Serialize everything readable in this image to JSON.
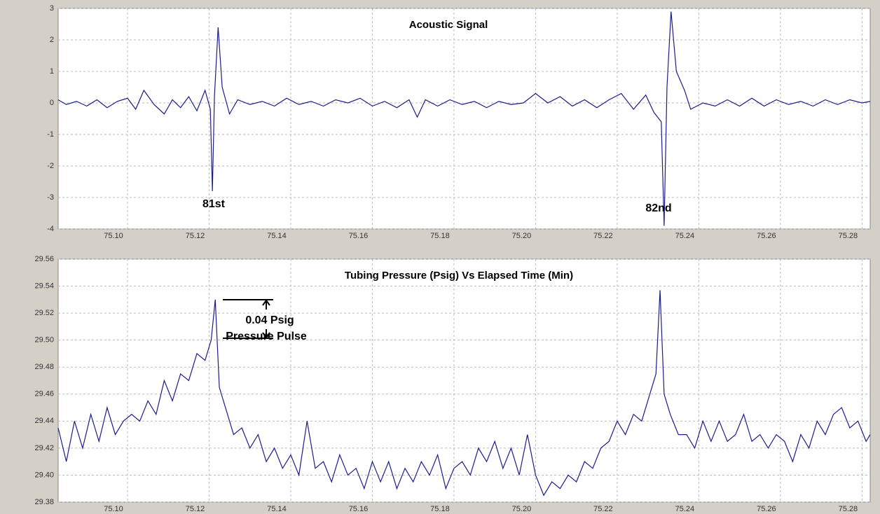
{
  "chart_data": [
    {
      "type": "line",
      "title": "Acoustic Signal",
      "annotations": [
        "81st",
        "82nd"
      ],
      "xlim": [
        75.083,
        75.282
      ],
      "ylim": [
        -4,
        3
      ],
      "xticks": [
        {
          "value": 75.1,
          "label": "75.10"
        },
        75.12,
        75.14,
        75.16,
        75.18,
        {
          "value": 75.2,
          "label": "75.20"
        },
        75.22,
        75.24,
        75.26,
        75.28
      ],
      "yticks": [
        -4,
        -3,
        -2,
        -1,
        0,
        1,
        2,
        3
      ],
      "grid": true,
      "series": [
        {
          "color": "#1c1c8a",
          "x": [
            75.083,
            75.085,
            75.0875,
            75.09,
            75.0925,
            75.095,
            75.0975,
            75.1,
            75.102,
            75.104,
            75.1065,
            75.109,
            75.111,
            75.113,
            75.115,
            75.117,
            75.119,
            75.1203,
            75.1208,
            75.1213,
            75.1222,
            75.1232,
            75.125,
            75.127,
            75.13,
            75.133,
            75.136,
            75.139,
            75.142,
            75.145,
            75.148,
            75.151,
            75.154,
            75.157,
            75.16,
            75.163,
            75.166,
            75.169,
            75.171,
            75.173,
            75.176,
            75.179,
            75.182,
            75.185,
            75.188,
            75.191,
            75.194,
            75.197,
            75.2,
            75.203,
            75.206,
            75.209,
            75.212,
            75.215,
            75.218,
            75.221,
            75.224,
            75.227,
            75.229,
            75.2308,
            75.2315,
            75.2322,
            75.2332,
            75.2345,
            75.2365,
            75.238,
            75.241,
            75.244,
            75.247,
            75.25,
            75.253,
            75.256,
            75.259,
            75.262,
            75.265,
            75.268,
            75.271,
            75.274,
            75.277,
            75.28,
            75.282
          ],
          "values": [
            0.1,
            -0.05,
            0.05,
            -0.1,
            0.1,
            -0.15,
            0.05,
            0.15,
            -0.2,
            0.4,
            -0.05,
            -0.35,
            0.1,
            -0.15,
            0.2,
            -0.25,
            0.4,
            -0.2,
            -2.8,
            0.2,
            2.4,
            0.5,
            -0.35,
            0.1,
            -0.05,
            0.05,
            -0.1,
            0.15,
            -0.05,
            0.05,
            -0.1,
            0.1,
            0.0,
            0.15,
            -0.1,
            0.05,
            -0.15,
            0.1,
            -0.45,
            0.1,
            -0.1,
            0.1,
            -0.05,
            0.05,
            -0.15,
            0.05,
            -0.05,
            0.0,
            0.3,
            0.0,
            0.2,
            -0.1,
            0.1,
            -0.15,
            0.1,
            0.3,
            -0.2,
            0.25,
            -0.3,
            -0.6,
            -3.9,
            0.5,
            2.9,
            1.0,
            0.4,
            -0.2,
            0.0,
            -0.1,
            0.1,
            -0.1,
            0.15,
            -0.1,
            0.1,
            -0.05,
            0.05,
            -0.1,
            0.1,
            -0.05,
            0.1,
            0.0,
            0.05
          ]
        }
      ]
    },
    {
      "type": "line",
      "title": "Tubing Pressure (Psig) Vs Elapsed Time (Min)",
      "annotations": [
        "0.04 Psig",
        "Pressure Pulse"
      ],
      "xlim": [
        75.083,
        75.282
      ],
      "ylim": [
        29.38,
        29.56
      ],
      "xticks": [
        {
          "value": 75.1,
          "label": "75.10"
        },
        75.12,
        75.14,
        75.16,
        75.18,
        {
          "value": 75.2,
          "label": "75.20"
        },
        75.22,
        75.24,
        75.26,
        75.28
      ],
      "yticks": [
        29.38,
        {
          "value": 29.4,
          "label": "29.40"
        },
        29.42,
        29.44,
        29.46,
        29.48,
        {
          "value": 29.5,
          "label": "29.50"
        },
        29.52,
        29.54,
        29.56
      ],
      "grid": true,
      "series": [
        {
          "color": "#1c1c8a",
          "x": [
            75.083,
            75.085,
            75.087,
            75.089,
            75.091,
            75.093,
            75.095,
            75.097,
            75.099,
            75.101,
            75.103,
            75.105,
            75.107,
            75.109,
            75.111,
            75.113,
            75.115,
            75.117,
            75.119,
            75.1205,
            75.1215,
            75.1225,
            75.124,
            75.126,
            75.128,
            75.13,
            75.132,
            75.134,
            75.136,
            75.138,
            75.14,
            75.142,
            75.144,
            75.146,
            75.148,
            75.15,
            75.152,
            75.154,
            75.156,
            75.158,
            75.16,
            75.162,
            75.164,
            75.166,
            75.168,
            75.17,
            75.172,
            75.174,
            75.176,
            75.178,
            75.18,
            75.182,
            75.184,
            75.186,
            75.188,
            75.19,
            75.192,
            75.194,
            75.196,
            75.198,
            75.2,
            75.202,
            75.204,
            75.206,
            75.208,
            75.21,
            75.212,
            75.214,
            75.216,
            75.218,
            75.22,
            75.222,
            75.224,
            75.226,
            75.228,
            75.2295,
            75.2305,
            75.2315,
            75.233,
            75.235,
            75.237,
            75.239,
            75.241,
            75.243,
            75.245,
            75.247,
            75.249,
            75.251,
            75.253,
            75.255,
            75.257,
            75.259,
            75.261,
            75.263,
            75.265,
            75.267,
            75.269,
            75.271,
            75.273,
            75.275,
            75.277,
            75.279,
            75.281,
            75.282
          ],
          "values": [
            29.435,
            29.41,
            29.44,
            29.42,
            29.445,
            29.425,
            29.45,
            29.43,
            29.44,
            29.445,
            29.44,
            29.455,
            29.445,
            29.47,
            29.455,
            29.475,
            29.47,
            29.49,
            29.485,
            29.5,
            29.53,
            29.465,
            29.45,
            29.43,
            29.435,
            29.42,
            29.43,
            29.41,
            29.42,
            29.405,
            29.415,
            29.4,
            29.44,
            29.405,
            29.41,
            29.395,
            29.415,
            29.4,
            29.405,
            29.39,
            29.41,
            29.395,
            29.41,
            29.39,
            29.405,
            29.395,
            29.41,
            29.4,
            29.415,
            29.39,
            29.405,
            29.41,
            29.4,
            29.42,
            29.41,
            29.425,
            29.405,
            29.42,
            29.4,
            29.43,
            29.4,
            29.385,
            29.395,
            29.39,
            29.4,
            29.395,
            29.41,
            29.405,
            29.42,
            29.425,
            29.44,
            29.43,
            29.445,
            29.44,
            29.46,
            29.475,
            29.537,
            29.46,
            29.445,
            29.43,
            29.43,
            29.42,
            29.44,
            29.425,
            29.44,
            29.425,
            29.43,
            29.445,
            29.425,
            29.43,
            29.42,
            29.43,
            29.425,
            29.41,
            29.43,
            29.42,
            29.44,
            29.43,
            29.445,
            29.45,
            29.435,
            29.44,
            29.425,
            29.43
          ]
        }
      ]
    }
  ]
}
